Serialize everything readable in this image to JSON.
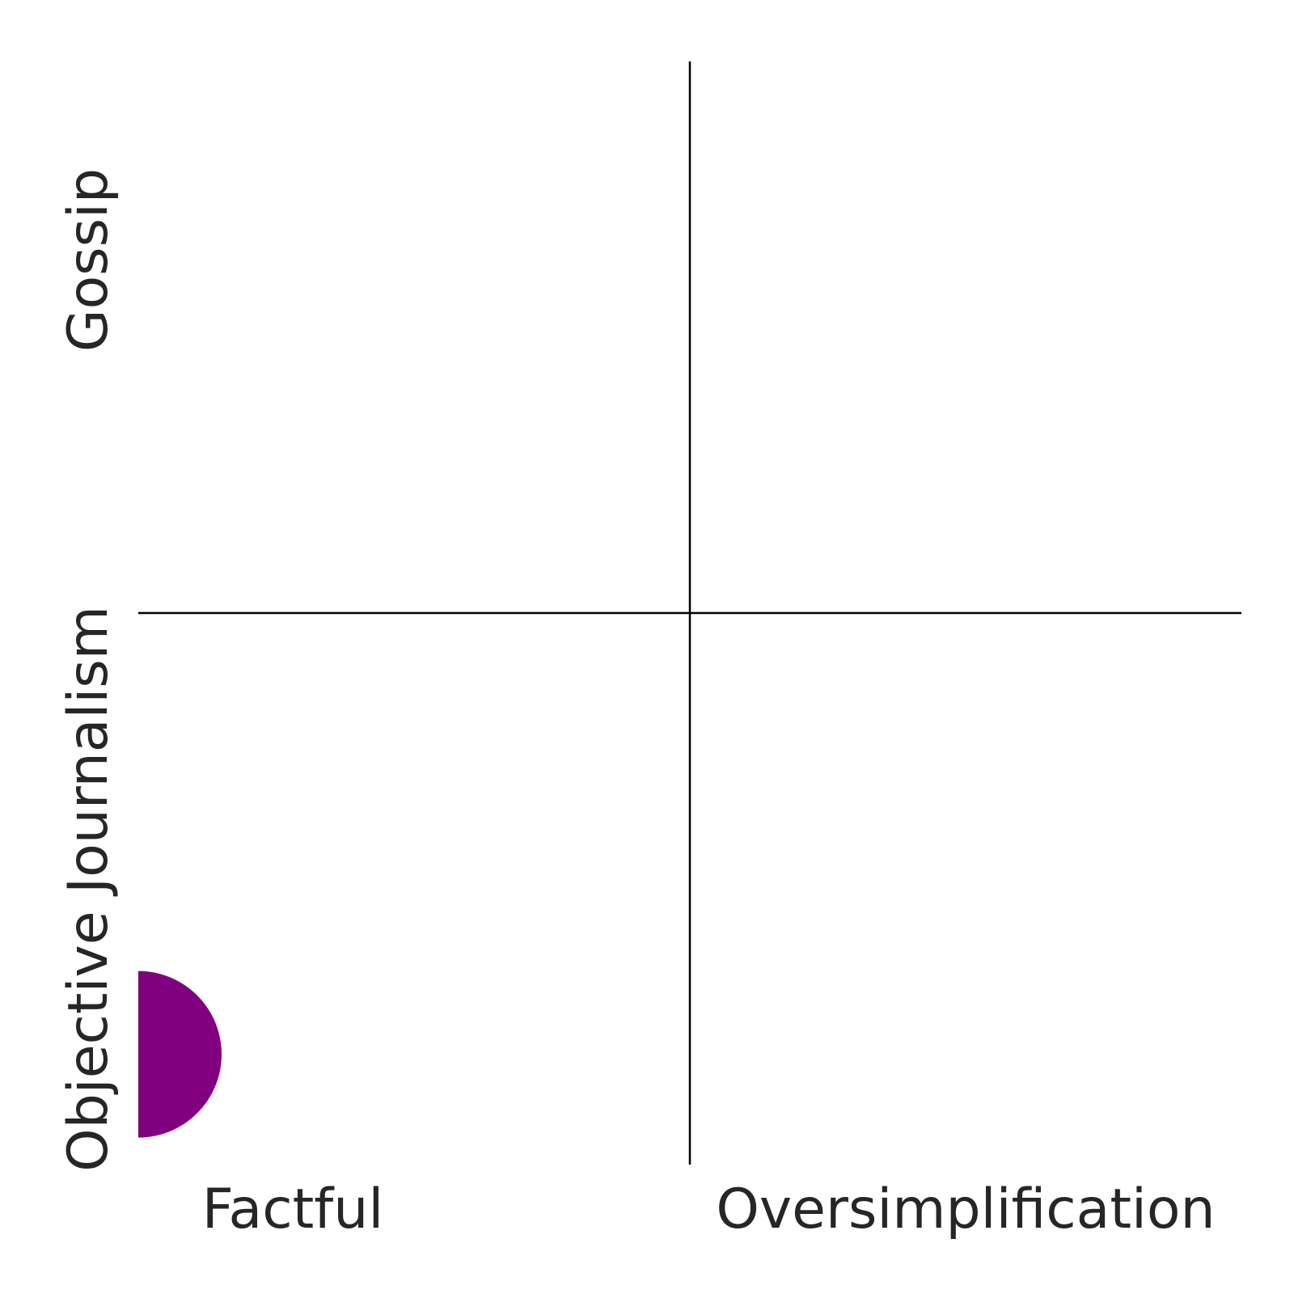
{
  "chart_data": {
    "type": "scatter",
    "title": "",
    "xlim": [
      0,
      1
    ],
    "ylim": [
      0,
      1
    ],
    "grid": false,
    "dividers": {
      "x": 0.5,
      "y": 0.5
    },
    "x_tick_labels": [
      {
        "label": "Factful",
        "value": 0.14
      },
      {
        "label": "Oversimplification",
        "value": 0.75
      }
    ],
    "y_tick_labels": [
      {
        "label": "Objective Journalism",
        "value": 0.25
      },
      {
        "label": "Gossip",
        "value": 0.82
      }
    ],
    "points": [
      {
        "x": 0.0,
        "y": 0.1,
        "color": "#800080"
      }
    ]
  }
}
